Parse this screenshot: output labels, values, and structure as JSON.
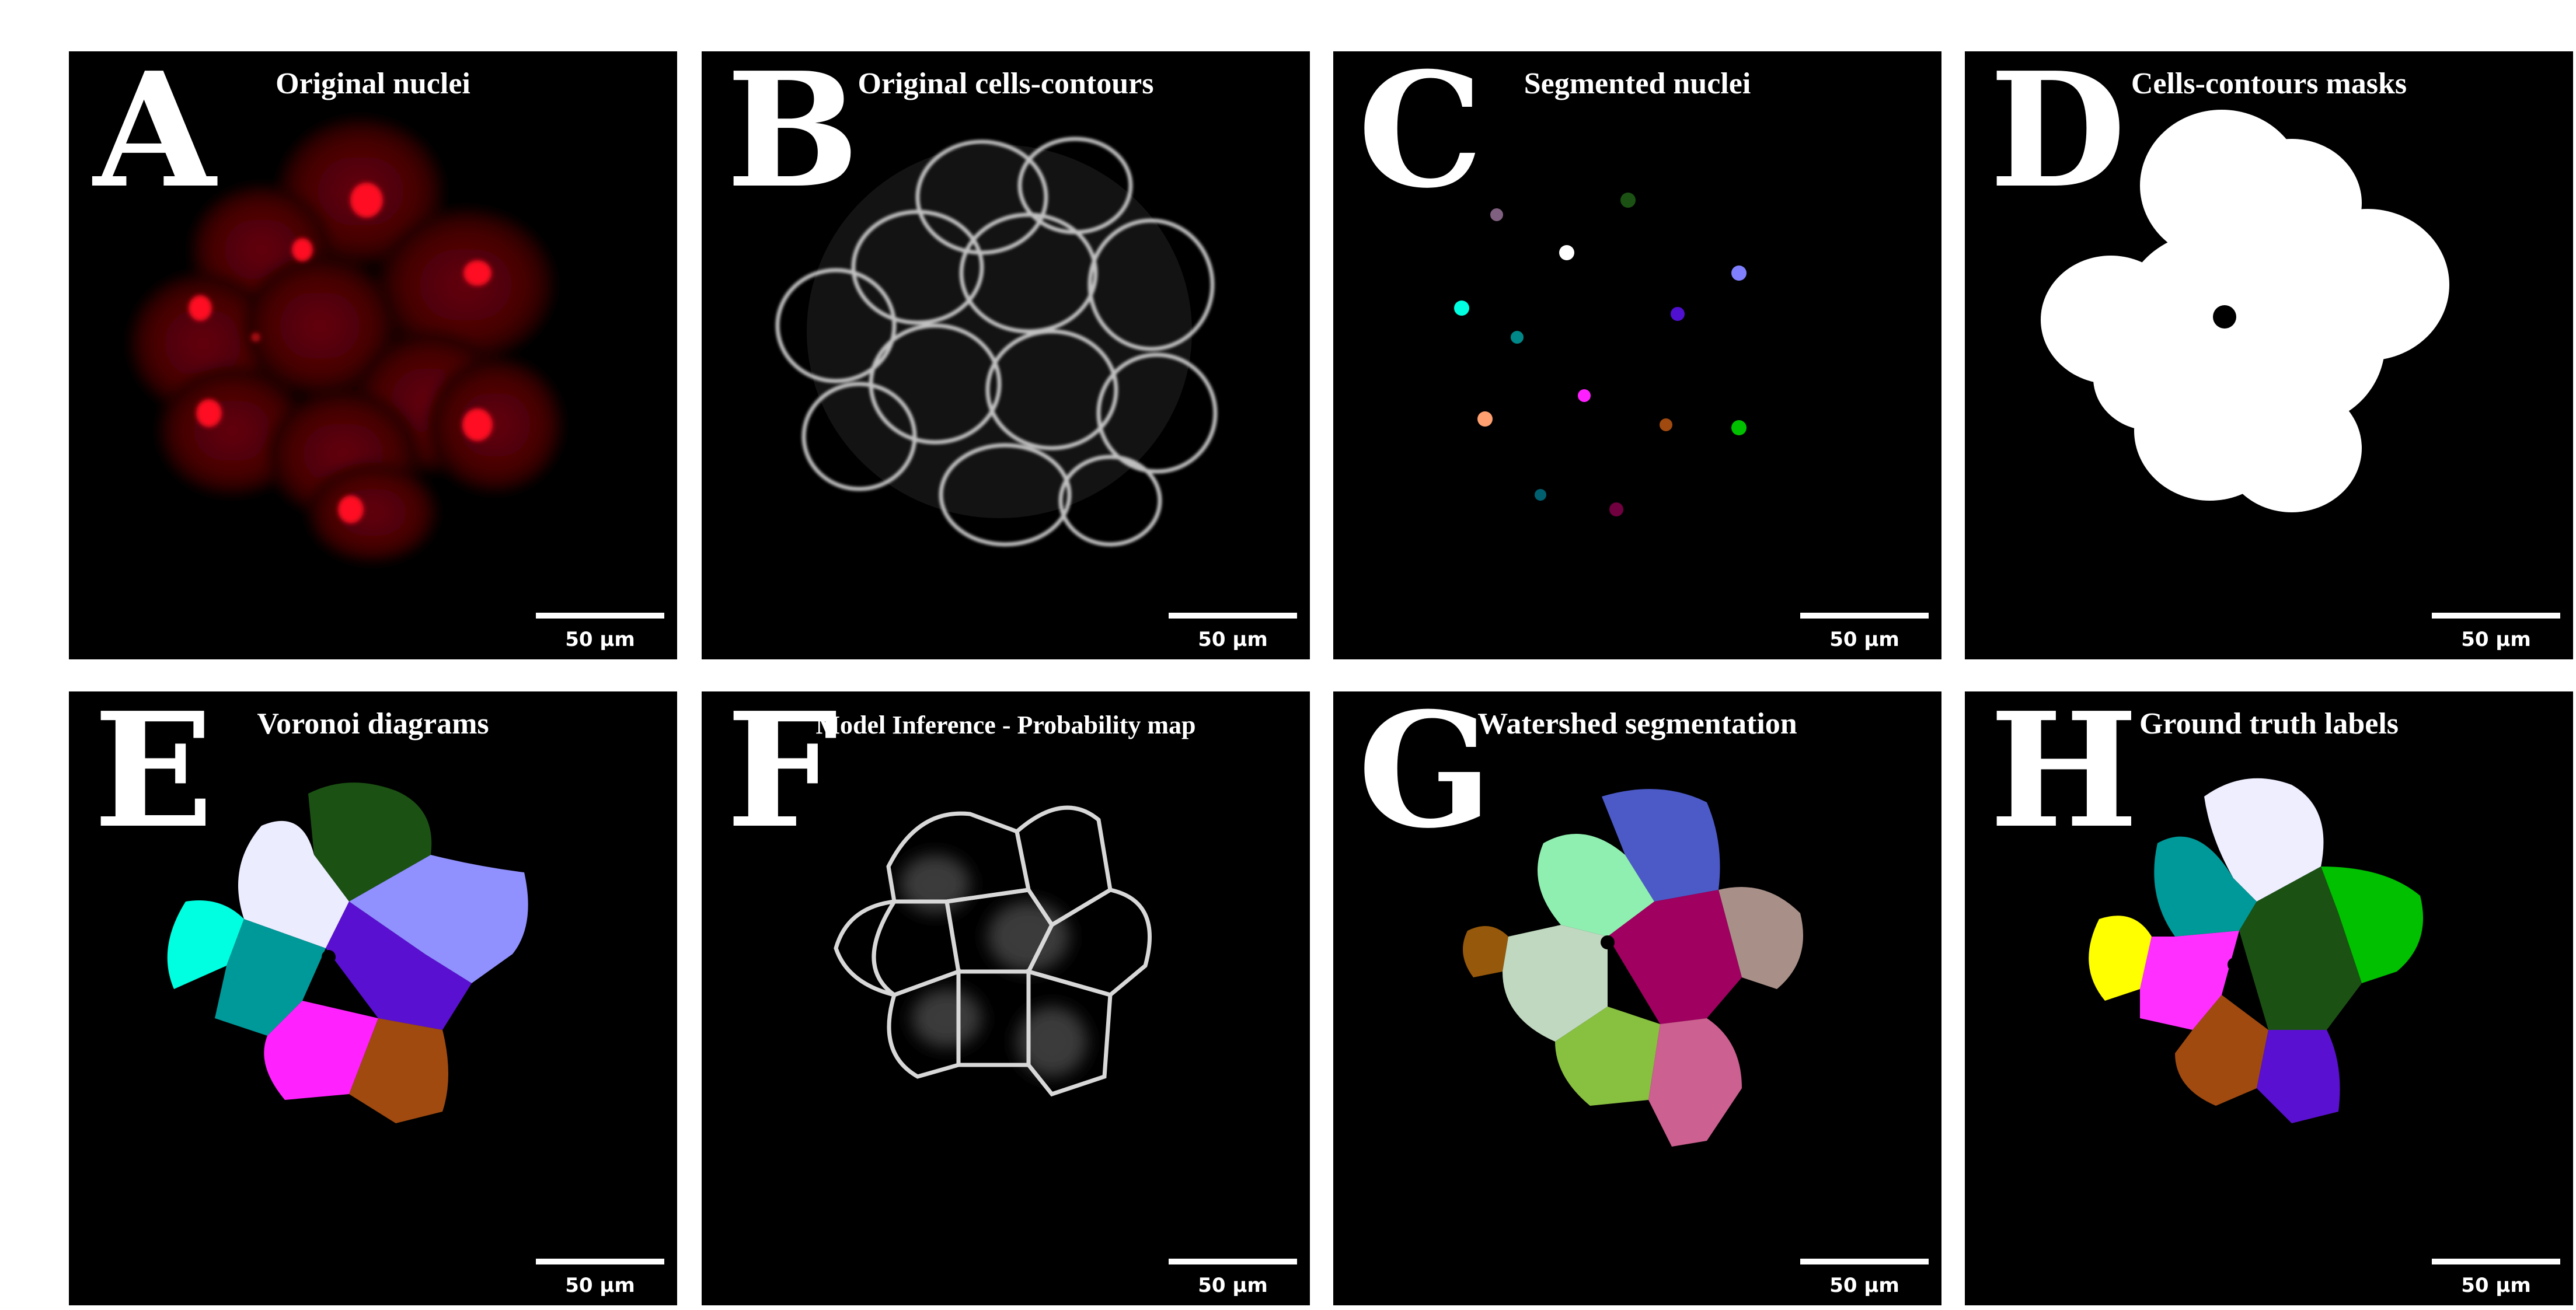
{
  "panels": [
    {
      "id": "A",
      "letter": "A",
      "title": "Original nuclei",
      "scale": "50 µm"
    },
    {
      "id": "B",
      "letter": "B",
      "title": "Original cells-contours",
      "scale": "50 µm"
    },
    {
      "id": "C",
      "letter": "C",
      "title": "Segmented nuclei",
      "scale": "50 µm"
    },
    {
      "id": "D",
      "letter": "D",
      "title": "Cells-contours masks",
      "scale": "50 µm"
    },
    {
      "id": "E",
      "letter": "E",
      "title": "Voronoi diagrams",
      "scale": "50 µm"
    },
    {
      "id": "F",
      "letter": "F",
      "title": "Model Inference - Probability map",
      "scale": "50 µm"
    },
    {
      "id": "G",
      "letter": "G",
      "title": "Watershed segmentation",
      "scale": "50 µm"
    },
    {
      "id": "H",
      "letter": "H",
      "title": "Ground truth labels",
      "scale": "50 µm"
    }
  ],
  "colors": {
    "panel_background": "#000000",
    "nuclei_red": "#e0101a",
    "contour_white": "#e8e8e8",
    "voronoi": [
      "#00ffe0",
      "#009999",
      "#ececff",
      "#1b5213",
      "#9090ff",
      "#5a10d0",
      "#ff22ff",
      "#a04a10"
    ],
    "watershed": [
      "#8fefb0",
      "#4c5ac8",
      "#a89088",
      "#a00060",
      "#96580a",
      "#c0d8c0",
      "#88c040",
      "#cc6090"
    ],
    "ground_truth": [
      "#eeeeff",
      "#009999",
      "#00c000",
      "#1b5213",
      "#ffff00",
      "#ff30ff",
      "#a04a10",
      "#5a10d0"
    ],
    "nuclei_dots": [
      "#806080",
      "#1b5213",
      "#ffffff",
      "#8080ff",
      "#00ffe0",
      "#008888",
      "#5010d0",
      "#ff20ff",
      "#ffa070",
      "#a04a10",
      "#00c000",
      "#006070",
      "#700040"
    ]
  }
}
